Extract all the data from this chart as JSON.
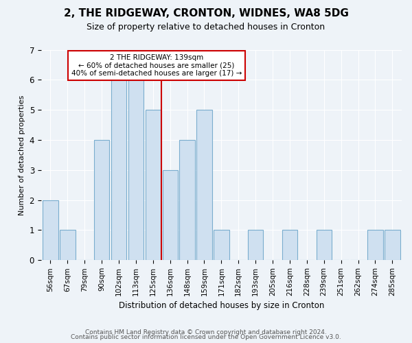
{
  "title": "2, THE RIDGEWAY, CRONTON, WIDNES, WA8 5DG",
  "subtitle": "Size of property relative to detached houses in Cronton",
  "xlabel": "Distribution of detached houses by size in Cronton",
  "ylabel": "Number of detached properties",
  "bin_labels": [
    "56sqm",
    "67sqm",
    "79sqm",
    "90sqm",
    "102sqm",
    "113sqm",
    "125sqm",
    "136sqm",
    "148sqm",
    "159sqm",
    "171sqm",
    "182sqm",
    "193sqm",
    "205sqm",
    "216sqm",
    "228sqm",
    "239sqm",
    "251sqm",
    "262sqm",
    "274sqm",
    "285sqm"
  ],
  "bar_heights": [
    2,
    1,
    0,
    4,
    6,
    6,
    5,
    3,
    4,
    5,
    1,
    0,
    1,
    0,
    1,
    0,
    1,
    0,
    0,
    1,
    1
  ],
  "bar_color": "#cfe0f0",
  "bar_edge_color": "#7aadce",
  "property_line_index": 7,
  "property_line_color": "#cc0000",
  "annotation_text": "2 THE RIDGEWAY: 139sqm\n← 60% of detached houses are smaller (25)\n40% of semi-detached houses are larger (17) →",
  "annotation_box_color": "#ffffff",
  "annotation_box_edge": "#cc0000",
  "ylim": [
    0,
    7
  ],
  "yticks": [
    0,
    1,
    2,
    3,
    4,
    5,
    6,
    7
  ],
  "footer_line1": "Contains HM Land Registry data © Crown copyright and database right 2024.",
  "footer_line2": "Contains public sector information licensed under the Open Government Licence v3.0.",
  "bg_color": "#eef3f8",
  "grid_color": "#ffffff",
  "title_fontsize": 11,
  "subtitle_fontsize": 9,
  "ylabel_fontsize": 8,
  "xlabel_fontsize": 8.5,
  "tick_fontsize": 7.5,
  "footer_fontsize": 6.5
}
